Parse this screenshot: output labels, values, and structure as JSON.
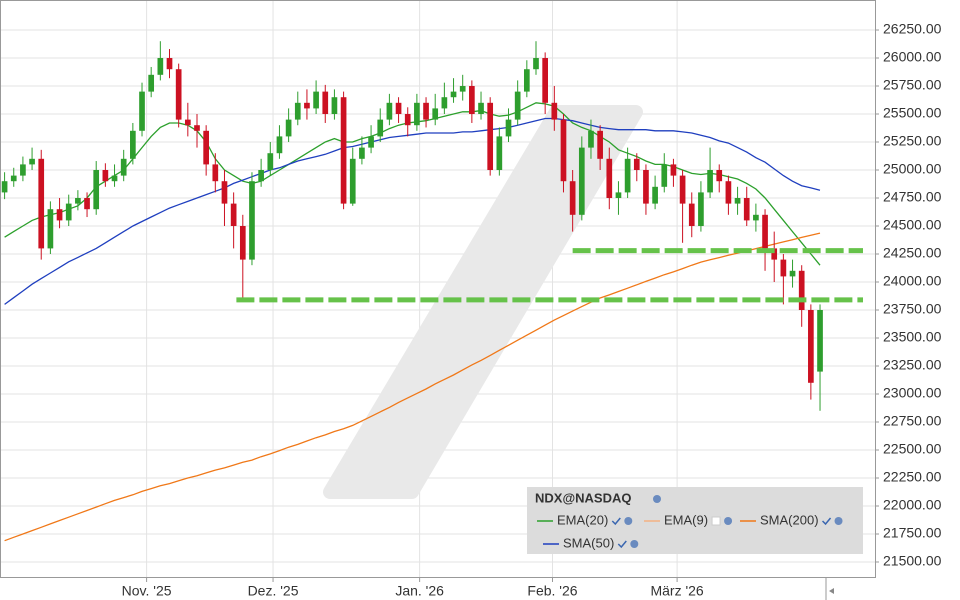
{
  "chart_data": {
    "type": "candlestick",
    "symbol": "NDX@NASDAQ",
    "up_color": "#2e9e2e",
    "down_color": "#cc1122",
    "grid": true,
    "xlim": [
      -0.5,
      95
    ],
    "ylim": [
      21357,
      26518
    ],
    "xticks": [
      {
        "value": 15.5,
        "label": "Nov. '25"
      },
      {
        "value": 29.3,
        "label": "Dez. '25"
      },
      {
        "value": 45.3,
        "label": "Jan. '26"
      },
      {
        "value": 59.8,
        "label": "Feb. '26"
      },
      {
        "value": 73.4,
        "label": "März '26"
      }
    ],
    "yticks": [
      {
        "value": 21500,
        "label": "21500.00"
      },
      {
        "value": 21750,
        "label": "21750.00"
      },
      {
        "value": 22000,
        "label": "22000.00"
      },
      {
        "value": 22250,
        "label": "22250.00"
      },
      {
        "value": 22500,
        "label": "22500.00"
      },
      {
        "value": 22750,
        "label": "22750.00"
      },
      {
        "value": 23000,
        "label": "23000.00"
      },
      {
        "value": 23250,
        "label": "23250.00"
      },
      {
        "value": 23500,
        "label": "23500.00"
      },
      {
        "value": 23750,
        "label": "23750.00"
      },
      {
        "value": 24000,
        "label": "24000.00"
      },
      {
        "value": 24250,
        "label": "24250.00"
      },
      {
        "value": 24500,
        "label": "24500.00"
      },
      {
        "value": 24750,
        "label": "24750.00"
      },
      {
        "value": 25000,
        "label": "25000.00"
      },
      {
        "value": 25250,
        "label": "25250.00"
      },
      {
        "value": 25500,
        "label": "25500.00"
      },
      {
        "value": 25750,
        "label": "25750.00"
      },
      {
        "value": 26000,
        "label": "26000.00"
      },
      {
        "value": 26250,
        "label": "26250.00"
      }
    ],
    "open": [
      24800,
      24900,
      24950,
      25050,
      25100,
      24300,
      24650,
      24550,
      24700,
      24750,
      24650,
      25000,
      24900,
      24950,
      25100,
      25350,
      25700,
      25850,
      26000,
      25900,
      25450,
      25400,
      25350,
      25050,
      24900,
      24700,
      24500,
      24200,
      24900,
      25000,
      25150,
      25300,
      25450,
      25600,
      25550,
      25700,
      25500,
      25650,
      24700,
      25100,
      25200,
      25300,
      25450,
      25600,
      25500,
      25400,
      25600,
      25450,
      25550,
      25650,
      25700,
      25750,
      25500,
      25600,
      25000,
      25300,
      25450,
      25700,
      25900,
      26000,
      25600,
      25450,
      24900,
      24600,
      25200,
      25350,
      25100,
      24750,
      24800,
      25100,
      25000,
      24700,
      24850,
      25050,
      24950,
      24700,
      24500,
      24800,
      25000,
      24900,
      24700,
      24750,
      24550,
      24600,
      24300,
      24200,
      24050,
      24100,
      23750,
      23200
    ],
    "high": [
      24980,
      25020,
      25120,
      25200,
      25180,
      24720,
      24750,
      24780,
      24820,
      24800,
      25080,
      25060,
      25050,
      25180,
      25420,
      25780,
      25920,
      26150,
      26080,
      25950,
      25600,
      25500,
      25400,
      25150,
      25000,
      24800,
      24600,
      24980,
      25100,
      25250,
      25400,
      25550,
      25700,
      25720,
      25800,
      25760,
      25720,
      25700,
      25200,
      25300,
      25400,
      25550,
      25680,
      25650,
      25560,
      25680,
      25650,
      25680,
      25780,
      25820,
      25850,
      25800,
      25700,
      25650,
      25380,
      25550,
      25800,
      25980,
      26150,
      26050,
      25750,
      25500,
      25000,
      25300,
      25450,
      25400,
      25200,
      24900,
      25200,
      25150,
      25050,
      24950,
      25150,
      25100,
      25000,
      24800,
      24900,
      25200,
      25050,
      24950,
      24850,
      24850,
      24700,
      24650,
      24450,
      24250,
      24200,
      24150,
      23800,
      23800
    ],
    "low": [
      24740,
      24850,
      24900,
      25000,
      24200,
      24250,
      24480,
      24500,
      24640,
      24580,
      24600,
      24850,
      24850,
      24900,
      25050,
      25300,
      25650,
      25800,
      25820,
      25380,
      25300,
      25200,
      24950,
      24800,
      24500,
      24300,
      23850,
      24150,
      24850,
      24950,
      25100,
      25250,
      25400,
      25450,
      25500,
      25420,
      25450,
      24650,
      24680,
      25050,
      25150,
      25250,
      25400,
      25420,
      25300,
      25350,
      25380,
      25400,
      25500,
      25600,
      25620,
      25420,
      25450,
      24950,
      24950,
      25250,
      25400,
      25650,
      25850,
      25500,
      25350,
      24800,
      24450,
      24550,
      25100,
      25000,
      24650,
      24600,
      24750,
      24900,
      24600,
      24650,
      24800,
      24850,
      24350,
      24400,
      24450,
      24750,
      24800,
      24600,
      24600,
      24500,
      24450,
      24100,
      24000,
      23800,
      23950,
      23600,
      22950,
      22850
    ],
    "close": [
      24900,
      24950,
      25050,
      25100,
      24300,
      24650,
      24550,
      24700,
      24750,
      24650,
      25000,
      24900,
      24950,
      25100,
      25350,
      25700,
      25850,
      26000,
      25900,
      25450,
      25400,
      25350,
      25050,
      24900,
      24700,
      24500,
      24200,
      24900,
      25000,
      25150,
      25300,
      25450,
      25600,
      25550,
      25700,
      25500,
      25650,
      24700,
      25100,
      25200,
      25300,
      25450,
      25600,
      25500,
      25400,
      25600,
      25450,
      25550,
      25650,
      25700,
      25750,
      25500,
      25600,
      25000,
      25300,
      25450,
      25700,
      25900,
      26000,
      25600,
      25450,
      24900,
      24600,
      25200,
      25350,
      25100,
      24750,
      24800,
      25100,
      25000,
      24700,
      24850,
      25050,
      24950,
      24700,
      24500,
      24800,
      25000,
      24900,
      24700,
      24750,
      24550,
      24600,
      24300,
      24200,
      24050,
      24100,
      23750,
      23100,
      23750
    ],
    "series": [
      {
        "name": "EMA(20)",
        "color": "#2ca02c",
        "values": [
          24400,
          24450,
          24500,
          24550,
          24580,
          24600,
          24620,
          24650,
          24680,
          24750,
          24850,
          24900,
          24950,
          25000,
          25100,
          25200,
          25300,
          25380,
          25420,
          25420,
          25400,
          25350,
          25250,
          25100,
          25000,
          24950,
          24900,
          24880,
          24900,
          24950,
          25000,
          25050,
          25100,
          25150,
          25200,
          25250,
          25280,
          25250,
          25250,
          25280,
          25300,
          25330,
          25370,
          25400,
          25420,
          25430,
          25440,
          25460,
          25480,
          25500,
          25520,
          25520,
          25530,
          25500,
          25480,
          25490,
          25520,
          25560,
          25600,
          25590,
          25570,
          25500,
          25420,
          25380,
          25350,
          25300,
          25250,
          25180,
          25150,
          25120,
          25080,
          25050,
          25050,
          25030,
          25000,
          24970,
          24960,
          24970,
          24960,
          24940,
          24920,
          24880,
          24830,
          24750,
          24650,
          24550,
          24450,
          24350,
          24250,
          24150
        ]
      },
      {
        "name": "EMA(9)",
        "color": "#f4b183",
        "visible": false
      },
      {
        "name": "SMA(200)",
        "color": "#f07818",
        "values": [
          21690,
          21720,
          21750,
          21780,
          21810,
          21840,
          21870,
          21900,
          21930,
          21960,
          21990,
          22020,
          22050,
          22075,
          22100,
          22130,
          22155,
          22180,
          22200,
          22225,
          22250,
          22270,
          22295,
          22320,
          22340,
          22365,
          22390,
          22410,
          22440,
          22465,
          22495,
          22525,
          22550,
          22580,
          22610,
          22635,
          22665,
          22690,
          22720,
          22760,
          22800,
          22840,
          22880,
          22925,
          22965,
          23005,
          23045,
          23090,
          23130,
          23170,
          23215,
          23260,
          23300,
          23345,
          23390,
          23435,
          23480,
          23525,
          23570,
          23615,
          23660,
          23700,
          23740,
          23780,
          23820,
          23857,
          23885,
          23915,
          23945,
          23975,
          24005,
          24035,
          24065,
          24090,
          24120,
          24150,
          24178,
          24198,
          24218,
          24238,
          24258,
          24278,
          24298,
          24318,
          24338,
          24358,
          24378,
          24398,
          24418,
          24437
        ]
      },
      {
        "name": "SMA(50)",
        "color": "#1f3fbf",
        "values": [
          23800,
          23860,
          23920,
          23980,
          24030,
          24080,
          24130,
          24180,
          24220,
          24260,
          24300,
          24350,
          24400,
          24450,
          24500,
          24540,
          24580,
          24620,
          24660,
          24690,
          24720,
          24750,
          24780,
          24810,
          24840,
          24880,
          24910,
          24940,
          24970,
          25000,
          25020,
          25050,
          25080,
          25100,
          25120,
          25140,
          25170,
          25200,
          25210,
          25230,
          25250,
          25270,
          25290,
          25300,
          25310,
          25320,
          25330,
          25330,
          25330,
          25330,
          25340,
          25340,
          25350,
          25360,
          25370,
          25380,
          25400,
          25420,
          25440,
          25460,
          25460,
          25450,
          25440,
          25420,
          25400,
          25380,
          25370,
          25360,
          25360,
          25360,
          25360,
          25350,
          25350,
          25350,
          25340,
          25330,
          25310,
          25290,
          25260,
          25240,
          25200,
          25160,
          25110,
          25070,
          25010,
          24950,
          24900,
          24860,
          24840,
          24820
        ]
      }
    ],
    "levels": [
      {
        "value": 24280,
        "from": 62,
        "color": "#66c24a"
      },
      {
        "value": 23840,
        "from": 25.3,
        "color": "#66c24a"
      }
    ]
  }
}
